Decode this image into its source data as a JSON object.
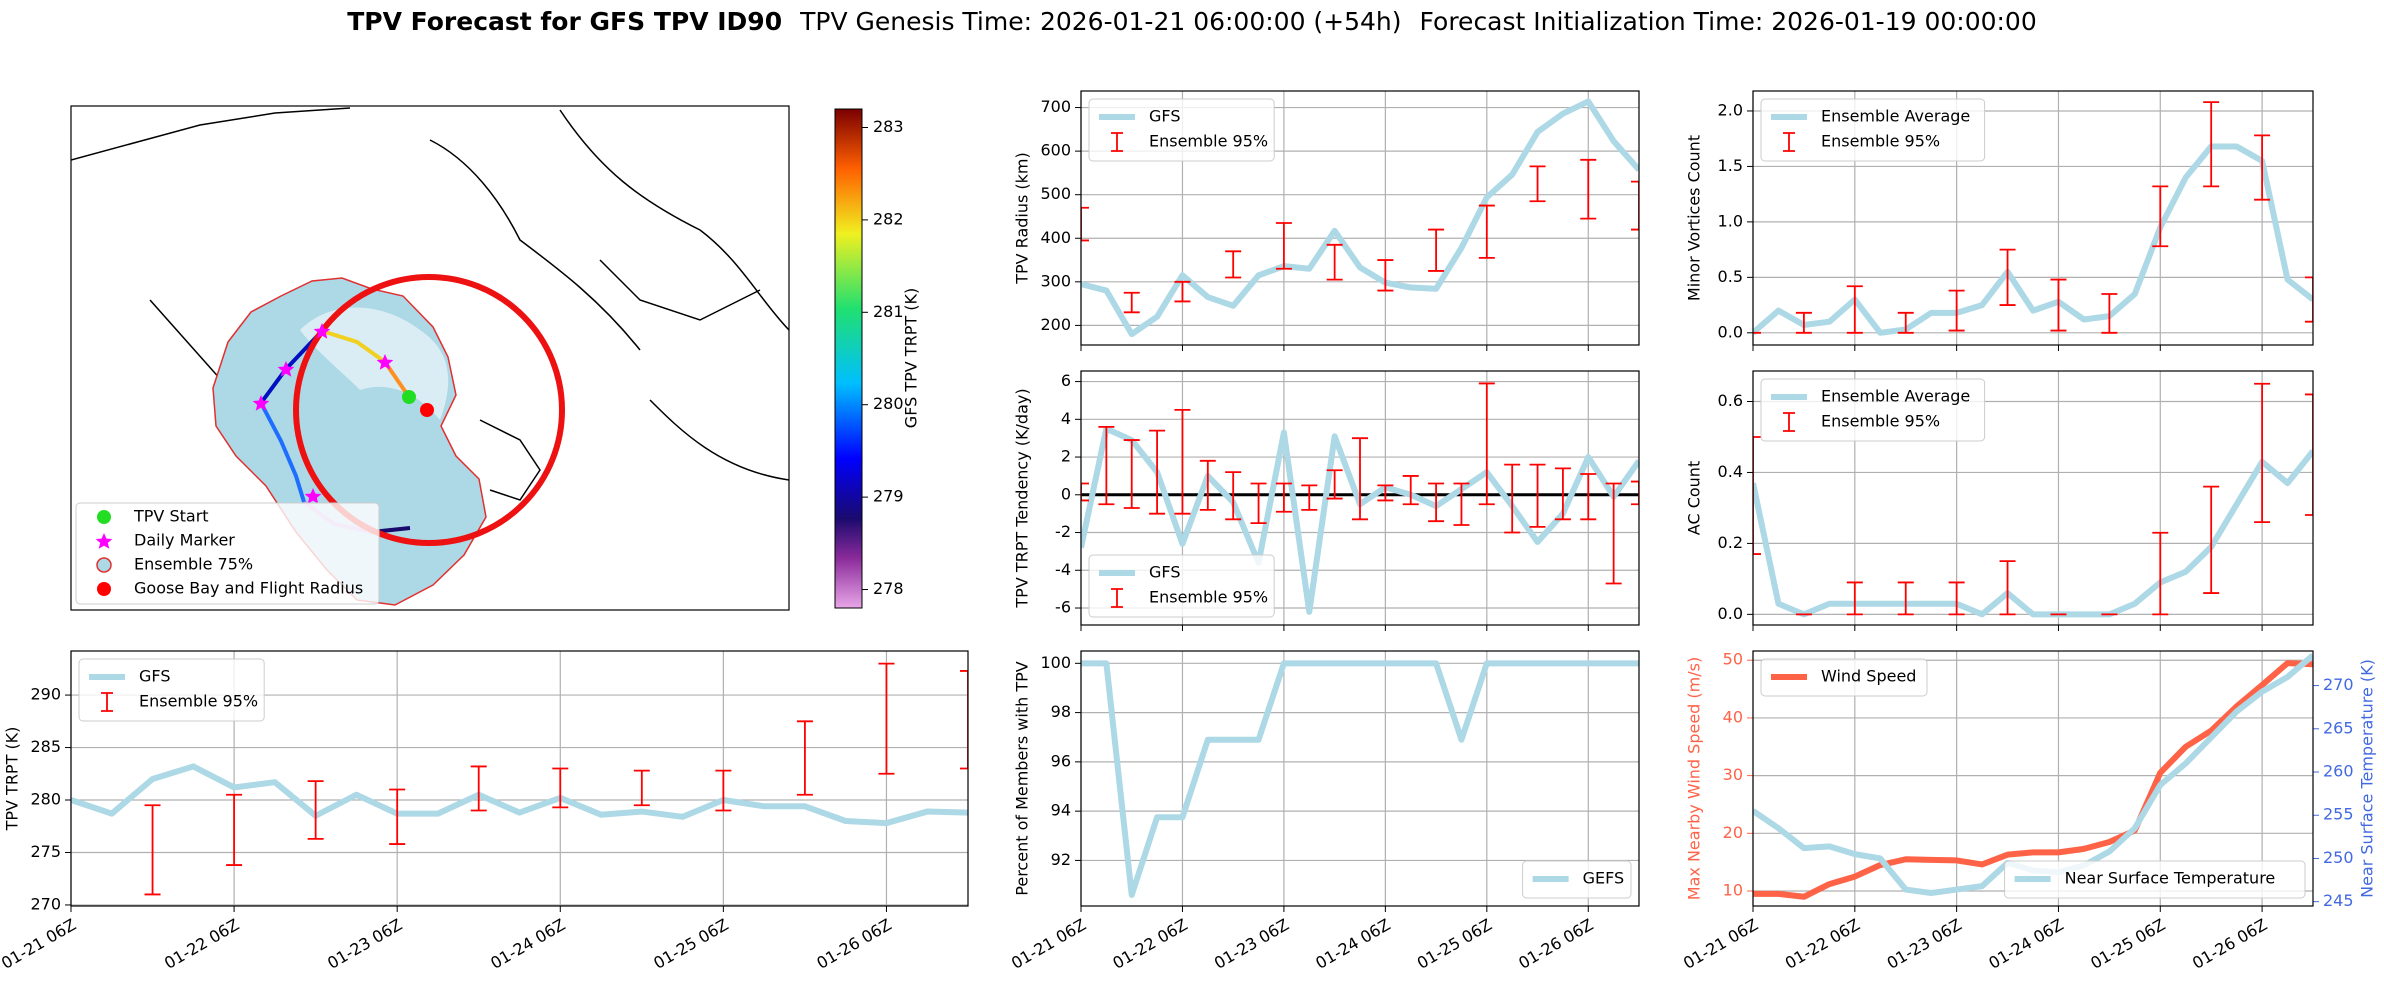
{
  "title": {
    "main": "TPV Forecast for GFS TPV ID90",
    "genesis": "TPV Genesis Time: 2026-01-21 06:00:00 (+54h)",
    "init": "Forecast Initialization Time: 2026-01-19 00:00:00"
  },
  "chart_data": [
    {
      "type": "map",
      "legend": [
        "TPV Start",
        "Daily Marker",
        "Ensemble 75%",
        "Goose Bay and Flight Radius"
      ],
      "colorbar": {
        "label": "GFS TPV TRPT (K)",
        "lim": [
          277.8,
          283.2
        ],
        "ticks": [
          278,
          279,
          280,
          281,
          282,
          283
        ]
      }
    },
    {
      "type": "line",
      "ylabel": "TPV Radius (km)",
      "legend": "upper left",
      "grid": true,
      "xlim": [
        0,
        132
      ],
      "xticks": [
        0,
        24,
        48,
        72,
        96,
        120
      ],
      "ylim": [
        155,
        738
      ],
      "yticks": [
        200,
        300,
        400,
        500,
        600,
        700
      ],
      "series": [
        {
          "name": "GFS",
          "type": "line",
          "color": "#add8e6",
          "x": [
            0,
            6,
            12,
            18,
            24,
            30,
            36,
            42,
            48,
            54,
            60,
            66,
            72,
            78,
            84,
            90,
            96,
            102,
            108,
            114,
            120,
            126,
            132
          ],
          "values": [
            295,
            280,
            180,
            220,
            315,
            265,
            245,
            315,
            336,
            330,
            417,
            333,
            298,
            287,
            284,
            378,
            494,
            546,
            644,
            686,
            714,
            623,
            557
          ]
        },
        {
          "name": "Ensemble 95%",
          "type": "errorbar",
          "color": "#ff0000",
          "x": [
            0,
            12,
            24,
            36,
            48,
            60,
            72,
            84,
            96,
            108,
            120,
            132
          ],
          "low": [
            395,
            230,
            255,
            310,
            330,
            305,
            280,
            325,
            355,
            485,
            445,
            420
          ],
          "high": [
            470,
            275,
            300,
            370,
            435,
            385,
            350,
            420,
            475,
            565,
            580,
            530
          ]
        }
      ]
    },
    {
      "type": "line",
      "ylabel": "TPV TRPT Tendency (K/day)",
      "legend": "lower left",
      "grid": true,
      "hline": 0,
      "xlim": [
        0,
        132
      ],
      "xticks": [
        0,
        24,
        48,
        72,
        96,
        120
      ],
      "ylim": [
        -6.9,
        6.56
      ],
      "yticks": [
        -6,
        -4,
        -2,
        0,
        2,
        4,
        6
      ],
      "series": [
        {
          "name": "GFS",
          "type": "line",
          "color": "#add8e6",
          "x": [
            0,
            6,
            12,
            18,
            24,
            30,
            36,
            42,
            48,
            54,
            60,
            66,
            72,
            78,
            84,
            90,
            96,
            102,
            108,
            114,
            120,
            126,
            132
          ],
          "values": [
            -2.8,
            3.5,
            2.9,
            1.2,
            -2.6,
            1.0,
            -0.4,
            -3.6,
            3.3,
            -6.2,
            3.1,
            -0.5,
            0.4,
            0.0,
            -0.6,
            0.3,
            1.2,
            -0.6,
            -2.5,
            -1.0,
            2.0,
            -0.1,
            1.8
          ]
        },
        {
          "name": "Ensemble 95%",
          "type": "errorbar",
          "color": "#ff0000",
          "x": [
            0,
            6,
            12,
            18,
            24,
            30,
            36,
            42,
            48,
            54,
            60,
            66,
            72,
            78,
            84,
            90,
            96,
            102,
            108,
            114,
            120,
            126,
            132
          ],
          "low": [
            -0.3,
            -0.5,
            -0.7,
            -1.0,
            -1.0,
            -0.8,
            -1.3,
            -1.5,
            -0.9,
            -0.8,
            -0.2,
            -1.3,
            -0.3,
            -0.5,
            -1.4,
            -1.6,
            -0.5,
            -2.0,
            -1.7,
            -1.3,
            -1.3,
            -4.7,
            -0.5
          ],
          "high": [
            0.6,
            3.6,
            2.9,
            3.4,
            4.5,
            1.8,
            1.2,
            0.6,
            0.6,
            0.5,
            1.3,
            3.0,
            0.5,
            1.0,
            0.6,
            0.6,
            5.9,
            1.6,
            1.6,
            1.4,
            1.1,
            0.6,
            0.7
          ]
        }
      ]
    },
    {
      "type": "line",
      "ylabel": "Minor Vortices Count",
      "legend": "upper left",
      "grid": true,
      "xlim": [
        0,
        132
      ],
      "xticks": [
        0,
        24,
        48,
        72,
        96,
        120
      ],
      "ylim": [
        -0.11,
        2.18
      ],
      "yticks": [
        {
          "value": 0,
          "label": "0.0"
        },
        0.5,
        {
          "value": 1,
          "label": "1.0"
        },
        1.5,
        {
          "value": 2,
          "label": "2.0"
        }
      ],
      "series": [
        {
          "name": "Ensemble Average",
          "type": "line",
          "color": "#add8e6",
          "x": [
            0,
            6,
            12,
            18,
            24,
            30,
            36,
            42,
            48,
            54,
            60,
            66,
            72,
            78,
            84,
            90,
            96,
            102,
            108,
            114,
            120,
            126,
            132
          ],
          "values": [
            0.0,
            0.2,
            0.07,
            0.1,
            0.3,
            0.0,
            0.03,
            0.18,
            0.18,
            0.25,
            0.55,
            0.2,
            0.28,
            0.12,
            0.15,
            0.35,
            0.95,
            1.4,
            1.68,
            1.68,
            1.55,
            0.48,
            0.3
          ]
        },
        {
          "name": "Ensemble 95%",
          "type": "errorbar",
          "color": "#ff0000",
          "x": [
            0,
            12,
            24,
            36,
            48,
            60,
            72,
            84,
            96,
            108,
            120,
            132
          ],
          "low": [
            0,
            0,
            0,
            0,
            0.02,
            0.25,
            0.02,
            0,
            0.78,
            1.32,
            1.2,
            0.1
          ],
          "high": [
            0,
            0.18,
            0.42,
            0.18,
            0.38,
            0.75,
            0.48,
            0.35,
            1.32,
            2.08,
            1.78,
            0.5
          ]
        }
      ]
    },
    {
      "type": "line",
      "ylabel": "AC Count",
      "legend": "upper left",
      "grid": true,
      "xlim": [
        0,
        132
      ],
      "xticks": [
        0,
        24,
        48,
        72,
        96,
        120
      ],
      "ylim": [
        -0.03,
        0.686
      ],
      "yticks": [
        {
          "value": 0,
          "label": "0.0"
        },
        0.2,
        0.4,
        0.6
      ],
      "series": [
        {
          "name": "Ensemble Average",
          "type": "line",
          "color": "#add8e6",
          "x": [
            0,
            6,
            12,
            18,
            24,
            30,
            36,
            42,
            48,
            54,
            60,
            66,
            72,
            78,
            84,
            90,
            96,
            102,
            108,
            114,
            120,
            126,
            132
          ],
          "values": [
            0.37,
            0.03,
            0.0,
            0.03,
            0.03,
            0.03,
            0.03,
            0.03,
            0.03,
            0.0,
            0.06,
            0.0,
            0.0,
            0.0,
            0.0,
            0.03,
            0.09,
            0.12,
            0.19,
            0.31,
            0.43,
            0.37,
            0.46
          ]
        },
        {
          "name": "Ensemble 95%",
          "type": "errorbar",
          "color": "#ff0000",
          "x": [
            0,
            12,
            24,
            36,
            48,
            60,
            72,
            84,
            96,
            108,
            120,
            132
          ],
          "low": [
            0.17,
            0,
            0,
            0,
            0,
            0,
            0,
            0,
            0,
            0.06,
            0.26,
            0.28
          ],
          "high": [
            0.5,
            0,
            0.09,
            0.09,
            0.09,
            0.15,
            0,
            0,
            0.23,
            0.36,
            0.65,
            0.62
          ]
        }
      ]
    },
    {
      "type": "line",
      "ylabel": "TPV TRPT (K)",
      "legend": "upper left",
      "grid": true,
      "xlim": [
        0,
        132
      ],
      "xticks": [
        {
          "value": 0,
          "label": "01-21 06Z"
        },
        {
          "value": 24,
          "label": "01-22 06Z"
        },
        {
          "value": 48,
          "label": "01-23 06Z"
        },
        {
          "value": 72,
          "label": "01-24 06Z"
        },
        {
          "value": 96,
          "label": "01-25 06Z"
        },
        {
          "value": 120,
          "label": "01-26 06Z"
        }
      ],
      "ylim": [
        269.9,
        294.2
      ],
      "yticks": [
        270,
        275,
        280,
        285,
        290
      ],
      "series": [
        {
          "name": "GFS",
          "type": "line",
          "color": "#add8e6",
          "x": [
            0,
            6,
            12,
            18,
            24,
            30,
            36,
            42,
            48,
            54,
            60,
            66,
            72,
            78,
            84,
            90,
            96,
            102,
            108,
            114,
            120,
            126,
            132
          ],
          "values": [
            280.0,
            278.7,
            282.0,
            283.2,
            281.2,
            281.7,
            278.5,
            280.5,
            278.7,
            278.7,
            280.5,
            278.8,
            280.2,
            278.6,
            278.9,
            278.4,
            280.0,
            279.4,
            279.4,
            278.0,
            277.8,
            278.9,
            278.8
          ]
        },
        {
          "name": "Ensemble 95%",
          "type": "errorbar",
          "color": "#ff0000",
          "x": [
            12,
            24,
            36,
            48,
            60,
            72,
            84,
            96,
            108,
            120,
            132
          ],
          "low": [
            271,
            273.8,
            276.3,
            275.8,
            279,
            279.3,
            279.5,
            279,
            280.5,
            282.5,
            283
          ],
          "high": [
            279.5,
            280.5,
            281.8,
            281,
            283.2,
            283,
            282.8,
            282.8,
            287.5,
            293,
            292.3
          ]
        }
      ]
    },
    {
      "type": "line",
      "ylabel": "Percent of Members with TPV",
      "legend": "lower right",
      "grid": true,
      "xlim": [
        0,
        132
      ],
      "xticks": [
        {
          "value": 0,
          "label": "01-21 06Z"
        },
        {
          "value": 24,
          "label": "01-22 06Z"
        },
        {
          "value": 48,
          "label": "01-23 06Z"
        },
        {
          "value": 72,
          "label": "01-24 06Z"
        },
        {
          "value": 96,
          "label": "01-25 06Z"
        },
        {
          "value": 120,
          "label": "01-26 06Z"
        }
      ],
      "ylim": [
        90.15,
        100.5
      ],
      "yticks": [
        92,
        94,
        96,
        98,
        100
      ],
      "series": [
        {
          "name": "GEFS",
          "type": "line",
          "color": "#add8e6",
          "x": [
            0,
            6,
            12,
            18,
            24,
            30,
            36,
            42,
            48,
            54,
            60,
            66,
            72,
            78,
            84,
            90,
            96,
            102,
            108,
            114,
            120,
            126,
            132
          ],
          "values": [
            100,
            100,
            90.6,
            93.75,
            93.75,
            96.9,
            96.9,
            96.9,
            100,
            100,
            100,
            100,
            100,
            100,
            100,
            96.9,
            100,
            100,
            100,
            100,
            100,
            100,
            100
          ]
        }
      ]
    },
    {
      "type": "line",
      "ylabel": "Max Nearby Wind Speed (m/s)",
      "y2label": "Near Surface Temperature (K)",
      "ycolor": "#ff6347",
      "y2color": "#4169e1",
      "grid": true,
      "xlim": [
        0,
        132
      ],
      "xticks": [
        {
          "value": 0,
          "label": "01-21 06Z"
        },
        {
          "value": 24,
          "label": "01-22 06Z"
        },
        {
          "value": 48,
          "label": "01-23 06Z"
        },
        {
          "value": 72,
          "label": "01-24 06Z"
        },
        {
          "value": 96,
          "label": "01-25 06Z"
        },
        {
          "value": 120,
          "label": "01-26 06Z"
        }
      ],
      "ylim": [
        7.4,
        51.6
      ],
      "yticks": [
        10,
        20,
        30,
        40,
        50
      ],
      "y2lim": [
        244.5,
        274.0
      ],
      "y2ticks": [
        245,
        250,
        255,
        260,
        265,
        270
      ],
      "series": [
        {
          "name": "Wind Speed",
          "type": "line",
          "color": "#ff6347",
          "legend": "upper left",
          "x": [
            0,
            6,
            12,
            18,
            24,
            30,
            36,
            42,
            48,
            54,
            60,
            66,
            72,
            78,
            84,
            90,
            96,
            102,
            108,
            114,
            120,
            126,
            132
          ],
          "values": [
            9.5,
            9.5,
            9.0,
            11.2,
            12.5,
            14.5,
            15.5,
            15.4,
            15.3,
            14.6,
            16.3,
            16.7,
            16.7,
            17.3,
            18.5,
            20.5,
            30.5,
            35.0,
            37.8,
            42.0,
            45.7,
            49.5,
            49.3
          ]
        },
        {
          "name": "Near Surface Temperature",
          "type": "line",
          "color": "#add8e6",
          "axis": "y2",
          "legend": "lower right",
          "x": [
            0,
            6,
            12,
            18,
            24,
            30,
            36,
            42,
            48,
            54,
            60,
            66,
            72,
            78,
            84,
            90,
            96,
            102,
            108,
            114,
            120,
            126,
            132
          ],
          "values": [
            255.5,
            253.5,
            251.2,
            251.4,
            250.5,
            250.0,
            246.4,
            246.0,
            246.4,
            246.8,
            249.5,
            248.6,
            248.4,
            249.2,
            250.8,
            253.5,
            258.5,
            261.0,
            264.0,
            267.0,
            269.3,
            271.0,
            273.5
          ]
        }
      ]
    }
  ]
}
